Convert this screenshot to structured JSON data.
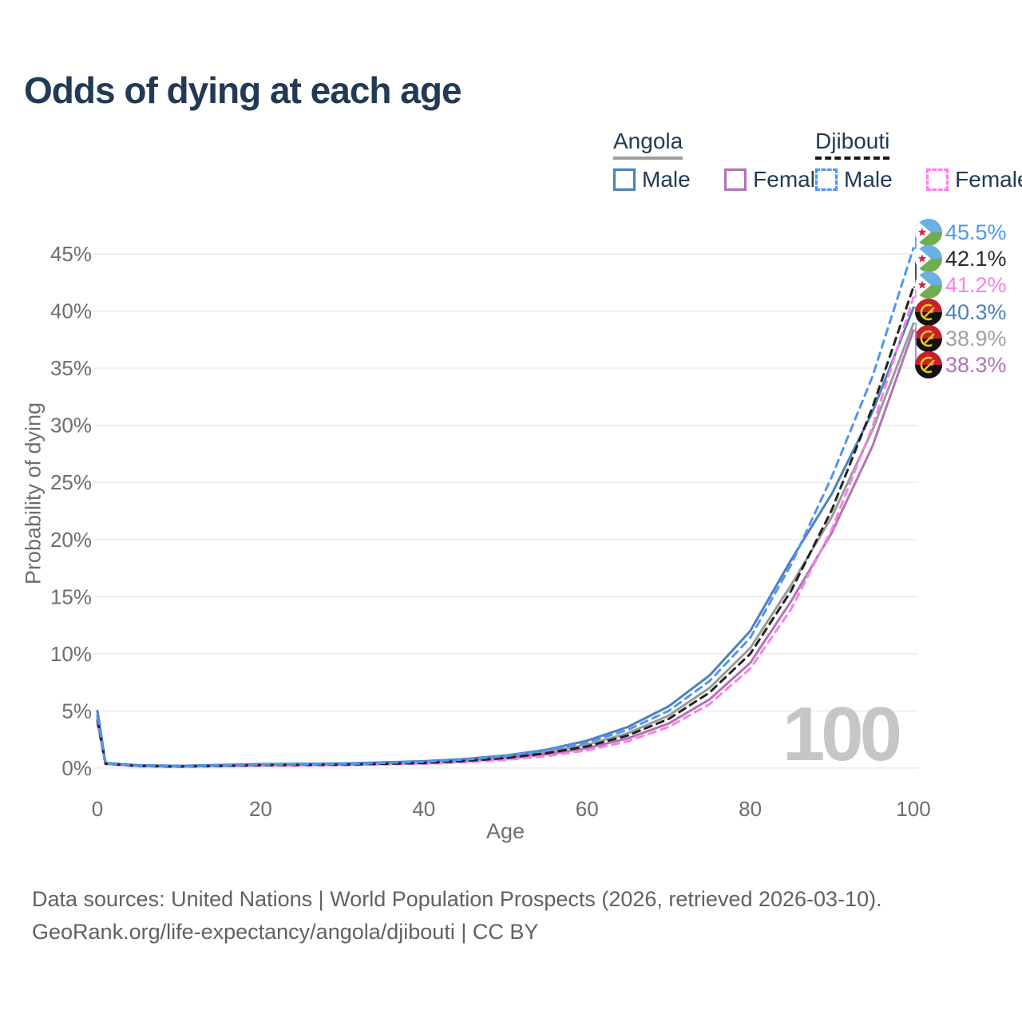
{
  "title": "Odds of dying at each age",
  "watermark": "100",
  "legend": {
    "groups": [
      {
        "label": "Angola",
        "line_style": "solid",
        "underline_color": "#9e9e9e",
        "items": [
          {
            "label": "Male",
            "color": "#4d80bd"
          },
          {
            "label": "Female",
            "color": "#b173b7"
          }
        ]
      },
      {
        "label": "Djibouti",
        "line_style": "dashed",
        "underline_color": "#1a1a1a",
        "items": [
          {
            "label": "Male",
            "color": "#4e95f7"
          },
          {
            "label": "Female",
            "color": "#fb80e5"
          }
        ]
      }
    ]
  },
  "chart_data": {
    "type": "line",
    "title": "Odds of dying at each age",
    "xlabel": "Age",
    "ylabel": "Probability of dying",
    "grid": "horizontal",
    "legend_position": "top-right",
    "x_axis": {
      "label": "Age",
      "tick_values": [
        0,
        20,
        40,
        60,
        80,
        100
      ],
      "range": [
        0,
        100
      ]
    },
    "y_axis": {
      "label": "Probability of dying",
      "tick_values": [
        0,
        5,
        10,
        15,
        20,
        25,
        30,
        35,
        40,
        45
      ],
      "tick_suffix": "%",
      "range": [
        0,
        47
      ]
    },
    "x": [
      0,
      1,
      5,
      10,
      20,
      30,
      40,
      45,
      50,
      55,
      60,
      65,
      70,
      75,
      80,
      85,
      90,
      95,
      100
    ],
    "series": [
      {
        "name": "Angola Male",
        "country": "Angola",
        "sex": "Male",
        "color": "#4d80bd",
        "dash": false,
        "end_value": 40.3,
        "values": [
          5.0,
          0.45,
          0.25,
          0.2,
          0.35,
          0.4,
          0.6,
          0.8,
          1.1,
          1.6,
          2.4,
          3.6,
          5.4,
          8.1,
          12.0,
          18.2,
          24.0,
          31.2,
          40.3
        ]
      },
      {
        "name": "Angola Female",
        "country": "Angola",
        "sex": "Female",
        "color": "#b173b7",
        "dash": false,
        "end_value": 38.3,
        "values": [
          4.2,
          0.4,
          0.21,
          0.16,
          0.25,
          0.3,
          0.45,
          0.6,
          0.82,
          1.2,
          1.75,
          2.6,
          3.9,
          6.0,
          9.2,
          14.6,
          20.6,
          28.2,
          38.3
        ]
      },
      {
        "name": "Angola",
        "country": "Angola",
        "sex": "Both",
        "color": "#9a9a9a",
        "dash": false,
        "end_value": 38.9,
        "values": [
          4.6,
          0.42,
          0.23,
          0.18,
          0.3,
          0.35,
          0.52,
          0.7,
          0.95,
          1.4,
          2.05,
          3.05,
          4.6,
          7.0,
          10.5,
          16.0,
          22.0,
          29.6,
          38.9
        ]
      },
      {
        "name": "Djibouti Male",
        "country": "Djibouti",
        "sex": "Male",
        "color": "#4e95f7",
        "dash": true,
        "end_value": 45.5,
        "values": [
          4.5,
          0.4,
          0.2,
          0.15,
          0.3,
          0.35,
          0.55,
          0.75,
          1.05,
          1.55,
          2.25,
          3.35,
          5.0,
          7.6,
          11.4,
          17.8,
          25.5,
          34.3,
          45.5
        ]
      },
      {
        "name": "Djibouti Female",
        "country": "Djibouti",
        "sex": "Female",
        "color": "#fb80e5",
        "dash": true,
        "end_value": 41.2,
        "values": [
          3.9,
          0.35,
          0.16,
          0.12,
          0.2,
          0.25,
          0.38,
          0.52,
          0.72,
          1.05,
          1.55,
          2.35,
          3.6,
          5.6,
          8.7,
          13.9,
          20.9,
          29.9,
          41.2
        ]
      },
      {
        "name": "Djibouti",
        "country": "Djibouti",
        "sex": "Both",
        "color": "#222222",
        "dash": true,
        "end_value": 42.1,
        "values": [
          4.2,
          0.38,
          0.18,
          0.13,
          0.25,
          0.3,
          0.45,
          0.62,
          0.88,
          1.3,
          1.9,
          2.85,
          4.3,
          6.6,
          10.0,
          15.5,
          22.6,
          31.6,
          42.1
        ]
      }
    ],
    "end_labels": [
      {
        "text": "45.5%",
        "series": "Djibouti Male",
        "flag": "djibouti",
        "color": "#4e95f7"
      },
      {
        "text": "42.1%",
        "series": "Djibouti",
        "flag": "djibouti",
        "color": "#2b2b2b"
      },
      {
        "text": "41.2%",
        "series": "Djibouti Female",
        "flag": "djibouti",
        "color": "#fb80e5"
      },
      {
        "text": "40.3%",
        "series": "Angola Male",
        "flag": "angola",
        "color": "#4d80bd"
      },
      {
        "text": "38.9%",
        "series": "Angola",
        "flag": "angola",
        "color": "#a0a0a0"
      },
      {
        "text": "38.3%",
        "series": "Angola Female",
        "flag": "angola",
        "color": "#b173b7"
      }
    ]
  },
  "footer": {
    "line1": "Data sources: United Nations | World Population Prospects (2026, retrieved 2026-03-10).",
    "line2": "GeoRank.org/life-expectancy/angola/djibouti | CC BY"
  }
}
